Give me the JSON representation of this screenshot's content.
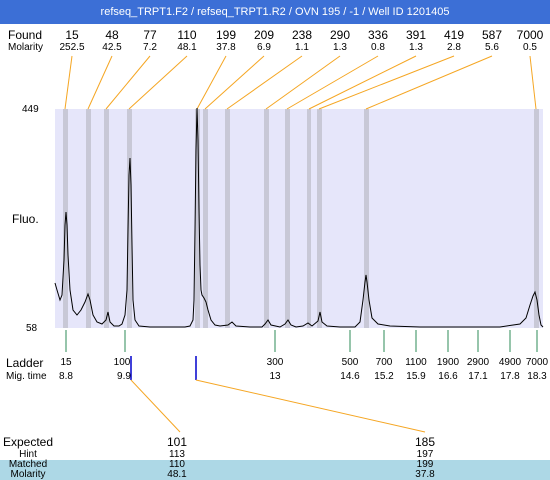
{
  "title": "refseq_TRPT1.F2 / refseq_TRPT1.R2 / OVN 195 / -1 / Well ID 1201405",
  "header": {
    "found_label": "Found",
    "molarity_label": "Molarity",
    "peaks": [
      {
        "found": "15",
        "molarity": "252.5"
      },
      {
        "found": "48",
        "molarity": "42.5"
      },
      {
        "found": "77",
        "molarity": "7.2"
      },
      {
        "found": "110",
        "molarity": "48.1"
      },
      {
        "found": "199",
        "molarity": "37.8"
      },
      {
        "found": "209",
        "molarity": "6.9"
      },
      {
        "found": "238",
        "molarity": "1.1"
      },
      {
        "found": "290",
        "molarity": "1.3"
      },
      {
        "found": "336",
        "molarity": "0.8"
      },
      {
        "found": "391",
        "molarity": "1.3"
      },
      {
        "found": "419",
        "molarity": "2.8"
      },
      {
        "found": "587",
        "molarity": "5.6"
      },
      {
        "found": "7000",
        "molarity": "0.5"
      }
    ]
  },
  "plot": {
    "y_top": "449",
    "y_bottom": "58",
    "ylabel": "Fluo."
  },
  "ladder": {
    "ladder_label": "Ladder",
    "migtime_label": "Mig. time",
    "items": [
      {
        "size": "15",
        "time": "8.8"
      },
      {
        "size": "100",
        "time": "9.9"
      },
      {
        "size": "300",
        "time": "13"
      },
      {
        "size": "500",
        "time": "14.6"
      },
      {
        "size": "700",
        "time": "15.2"
      },
      {
        "size": "1100",
        "time": "15.9"
      },
      {
        "size": "1900",
        "time": "16.6"
      },
      {
        "size": "2900",
        "time": "17.1"
      },
      {
        "size": "4900",
        "time": "17.8"
      },
      {
        "size": "7000",
        "time": "18.3"
      }
    ]
  },
  "expected_table": {
    "labels": {
      "expected": "Expected",
      "hint": "Hint",
      "matched": "Matched",
      "molarity": "Molarity"
    },
    "columns": [
      {
        "expected": "101",
        "hint": "113",
        "matched": "110",
        "molarity": "48.1"
      },
      {
        "expected": "185",
        "hint": "197",
        "matched": "199",
        "molarity": "37.8"
      }
    ]
  },
  "colors": {
    "title_bg": "#3c6fd6",
    "plot_bg": "#e6e6fa",
    "peak_band": "#c8c8d6",
    "connector": "#f5a623",
    "ladder_tick": "#2e8b57",
    "marker_blue": "#0000cc",
    "highlight_row": "#add8e6"
  }
}
